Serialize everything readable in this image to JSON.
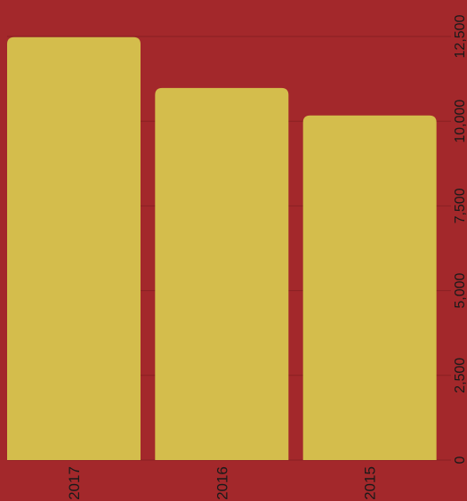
{
  "chart_data": {
    "type": "bar",
    "categories": [
      "2017",
      "2016",
      "2015"
    ],
    "values": [
      12480,
      10980,
      10170
    ],
    "ylim": [
      0,
      12500
    ],
    "yticks": [
      "0",
      "2,500",
      "5,000",
      "7,500",
      "10,000",
      "12,500"
    ],
    "ytick_values": [
      0,
      2500,
      5000,
      7500,
      10000,
      12500
    ],
    "grid": true,
    "title": "",
    "xlabel": "",
    "ylabel": "",
    "colors": {
      "background": "#a3282b",
      "bar": "#d4bd4c",
      "grid": "#8a2023",
      "text": "#1a1a1a"
    }
  }
}
